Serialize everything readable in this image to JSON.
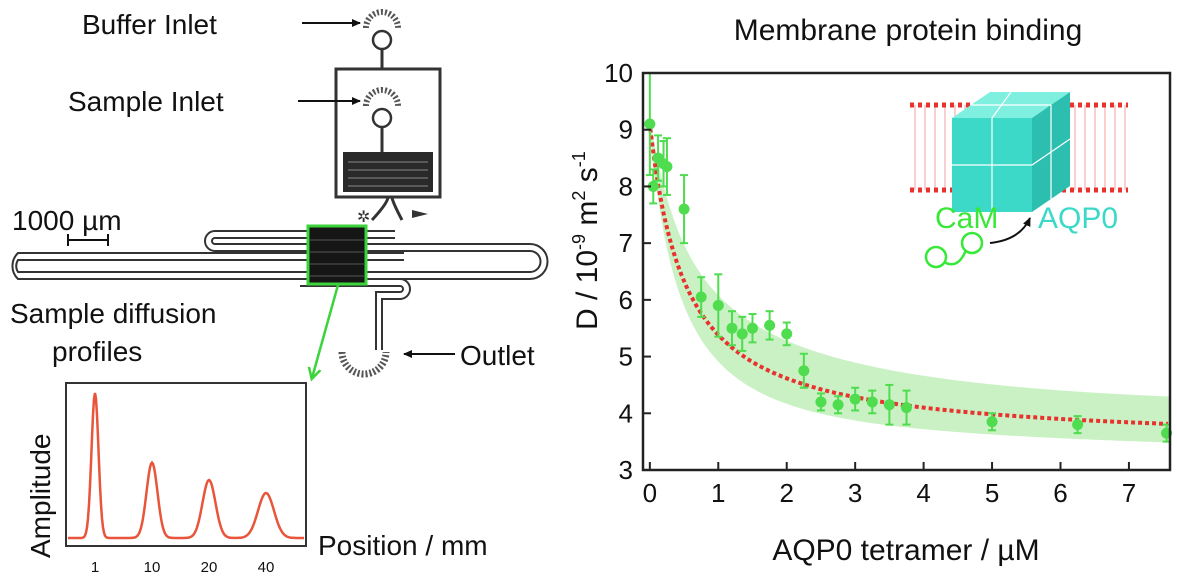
{
  "schematic": {
    "buffer_inlet": "Buffer Inlet",
    "sample_inlet": "Sample Inlet",
    "scale_bar": "1000 µm",
    "diffusion_label_line1": "Sample diffusion",
    "diffusion_label_line2": "profiles",
    "outlet": "Outlet"
  },
  "profiles_plot": {
    "ylabel": "Amplitude",
    "xlabel": "Position / mm",
    "ticks": [
      "1",
      "10",
      "20",
      "40"
    ],
    "peak_amplitudes": [
      1.0,
      0.52,
      0.4,
      0.31
    ],
    "line_color": "#e8553a"
  },
  "chart_data": {
    "type": "scatter",
    "title": "Membrane protein binding",
    "xlabel": "AQP0 tetramer / µM",
    "ylabel_main": "D / 10",
    "ylabel_exp1": "-9",
    "ylabel_mid": " m",
    "ylabel_exp2": "2",
    "ylabel_tail": " s",
    "ylabel_exp3": "-1",
    "xlim": [
      -0.1,
      7.6
    ],
    "ylim": [
      3,
      10
    ],
    "xticks": [
      0,
      1,
      2,
      3,
      4,
      5,
      6,
      7
    ],
    "yticks": [
      3,
      4,
      5,
      6,
      7,
      8,
      9,
      10
    ],
    "points": [
      {
        "x": 0.0,
        "y": 9.1,
        "err": 0.9
      },
      {
        "x": 0.05,
        "y": 8.0,
        "err": 0.3
      },
      {
        "x": 0.12,
        "y": 8.5,
        "err": 0.4
      },
      {
        "x": 0.2,
        "y": 8.4,
        "err": 0.4
      },
      {
        "x": 0.25,
        "y": 8.35,
        "err": 0.5
      },
      {
        "x": 0.5,
        "y": 7.6,
        "err": 0.6
      },
      {
        "x": 0.75,
        "y": 6.05,
        "err": 0.35
      },
      {
        "x": 1.0,
        "y": 5.9,
        "err": 0.55
      },
      {
        "x": 1.2,
        "y": 5.5,
        "err": 0.3
      },
      {
        "x": 1.35,
        "y": 5.4,
        "err": 0.3
      },
      {
        "x": 1.5,
        "y": 5.5,
        "err": 0.25
      },
      {
        "x": 1.75,
        "y": 5.55,
        "err": 0.25
      },
      {
        "x": 2.0,
        "y": 5.4,
        "err": 0.2
      },
      {
        "x": 2.25,
        "y": 4.75,
        "err": 0.3
      },
      {
        "x": 2.5,
        "y": 4.2,
        "err": 0.15
      },
      {
        "x": 2.75,
        "y": 4.15,
        "err": 0.15
      },
      {
        "x": 3.0,
        "y": 4.25,
        "err": 0.2
      },
      {
        "x": 3.25,
        "y": 4.2,
        "err": 0.2
      },
      {
        "x": 3.5,
        "y": 4.15,
        "err": 0.35
      },
      {
        "x": 3.75,
        "y": 4.1,
        "err": 0.3
      },
      {
        "x": 5.0,
        "y": 3.85,
        "err": 0.15
      },
      {
        "x": 6.25,
        "y": 3.8,
        "err": 0.15
      },
      {
        "x": 7.55,
        "y": 3.65,
        "err": 0.15
      }
    ],
    "fit_curve": {
      "D0": 9.1,
      "Dinf": 3.45,
      "k": 0.52,
      "color": "#e8322e"
    },
    "band": {
      "color": "#c9f1c4"
    },
    "point_color": "#4fdc4f",
    "inset": {
      "left_label": "CaM",
      "right_label": "AQP0",
      "left_color": "#38e838",
      "right_color": "#3cd9c8"
    }
  }
}
